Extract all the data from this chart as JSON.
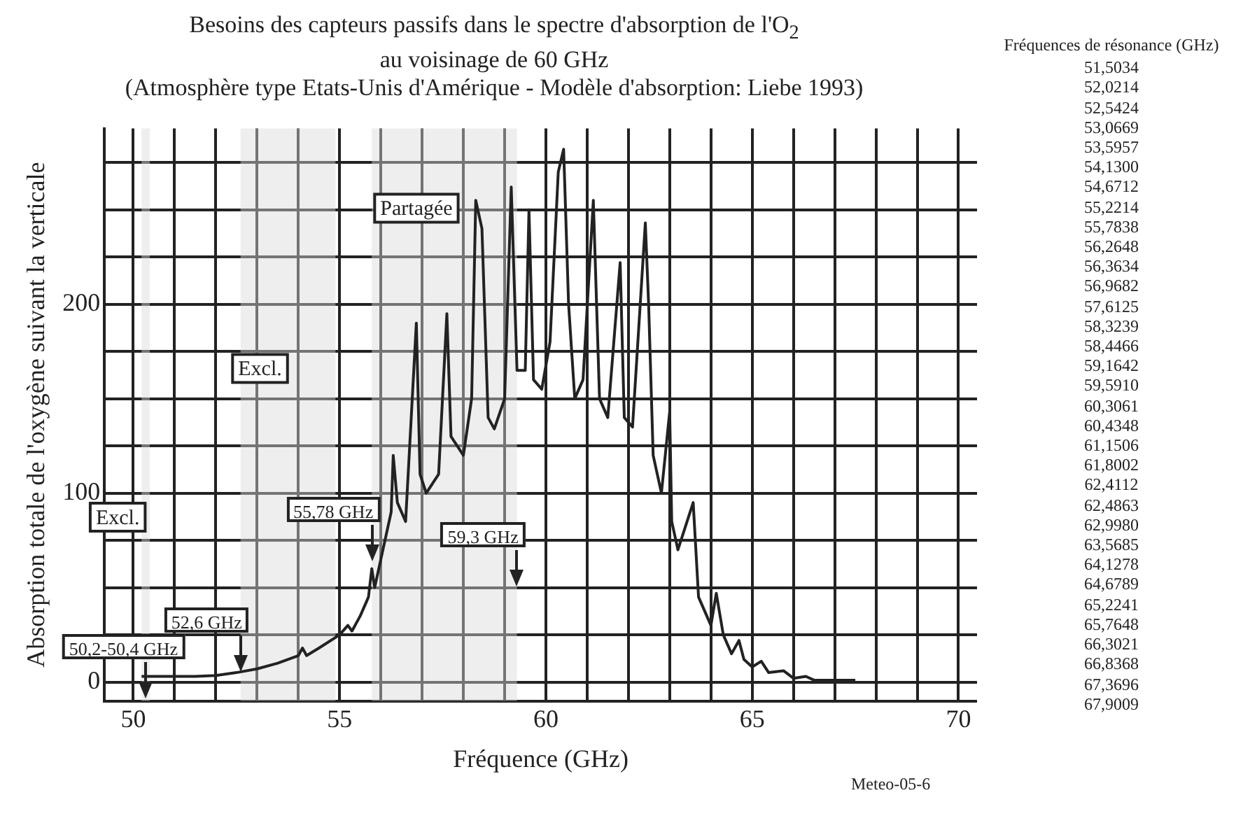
{
  "chart_data": {
    "type": "line",
    "title": "Besoins des capteurs passifs dans le spectre d'absorption de l'O$_{2}$\nau voisinage de  60 GHz",
    "subtitle": "(Atmosphère type Etats-Unis d'Amérique - Modèle d'absorption: Liebe 1993)",
    "xlabel": "Fréquence (GHz)",
    "ylabel": "Absorption totale de l'oxygène suivant la verticale",
    "x": [
      50.2,
      50.5,
      51,
      51.5,
      52,
      52.5,
      53,
      53.5,
      54,
      54.1,
      54.2,
      54.5,
      55,
      55.2,
      55.3,
      55.5,
      55.7,
      55.78,
      55.85,
      56,
      56.25,
      56.3,
      56.4,
      56.6,
      56.86,
      56.95,
      57.1,
      57.4,
      57.6,
      57.7,
      58,
      58.2,
      58.3,
      58.45,
      58.6,
      58.75,
      59,
      59.16,
      59.3,
      59.5,
      59.59,
      59.7,
      59.9,
      60.1,
      60.3,
      60.43,
      60.55,
      60.7,
      60.9,
      61.15,
      61.3,
      61.5,
      61.8,
      61.9,
      62.1,
      62.41,
      62.49,
      62.6,
      62.8,
      63,
      63.05,
      63.2,
      63.57,
      63.7,
      64,
      64.13,
      64.3,
      64.5,
      64.68,
      64.8,
      65,
      65.22,
      65.4,
      65.76,
      66,
      66.3,
      66.5,
      67,
      67.5
    ],
    "series": [
      {
        "color": "#222222",
        "values": [
          3,
          3,
          3,
          3,
          3.5,
          5,
          7,
          10,
          14,
          18,
          14,
          18,
          25,
          30,
          27,
          35,
          45,
          60,
          50,
          65,
          90,
          120,
          95,
          85,
          190,
          110,
          100,
          110,
          195,
          130,
          120,
          150,
          255,
          240,
          140,
          134,
          150,
          262,
          165,
          165,
          250,
          160,
          155,
          180,
          270,
          282,
          200,
          150,
          160,
          255,
          150,
          140,
          222,
          140,
          135,
          243,
          200,
          120,
          100,
          143,
          85,
          70,
          95,
          45,
          30,
          47,
          25,
          15,
          22,
          12,
          8,
          11,
          5,
          6,
          2,
          3,
          1,
          1,
          1
        ]
      }
    ],
    "xlim": [
      49.3,
      70.45
    ],
    "ylim": [
      -10,
      293
    ],
    "xticks": [
      50,
      {
        "value": 51,
        "label": null
      },
      {
        "value": 52,
        "label": null
      },
      {
        "value": 53,
        "label": null
      },
      {
        "value": 54,
        "label": null
      },
      55,
      {
        "value": 56,
        "label": null
      },
      {
        "value": 57,
        "label": null
      },
      {
        "value": 58,
        "label": null
      },
      {
        "value": 59,
        "label": null
      },
      60,
      {
        "value": 61,
        "label": null
      },
      {
        "value": 62,
        "label": null
      },
      {
        "value": 63,
        "label": null
      },
      {
        "value": 64,
        "label": null
      },
      65,
      {
        "value": 66,
        "label": null
      },
      {
        "value": 67,
        "label": null
      },
      {
        "value": 68,
        "label": null
      },
      {
        "value": 69,
        "label": null
      },
      70
    ],
    "yticks": [
      0,
      {
        "value": 25,
        "label": null
      },
      {
        "value": 50,
        "label": null
      },
      {
        "value": 75,
        "label": null
      },
      100,
      {
        "value": 125,
        "label": null
      },
      {
        "value": 150,
        "label": null
      },
      {
        "value": 175,
        "label": null
      },
      200,
      {
        "value": 225,
        "label": null
      },
      {
        "value": 250,
        "label": null
      },
      {
        "value": 275,
        "label": null
      }
    ],
    "grid": true,
    "legend": false,
    "marker": "none",
    "line_style": "solid",
    "bands": [
      {
        "axis": "x",
        "from": 55.78,
        "to": 59.3,
        "label": "Partagée",
        "color": "#d9d9d9"
      },
      {
        "axis": "x",
        "from": 52.6,
        "to": 54.9,
        "label": "Excl.",
        "color": "#d9d9d9"
      },
      {
        "axis": "x",
        "from": 50.2,
        "to": 50.4,
        "label": "Excl.",
        "color": "#d9d9d9"
      }
    ],
    "annotations": [
      {
        "text": "55,78 GHz",
        "x": 55.78,
        "y": 64
      },
      {
        "text": "59,3 GHz",
        "x": 59.3
      },
      {
        "text": "52,6 GHz",
        "x": 52.6,
        "y": 5.4
      },
      {
        "text": "50,2-50,4 GHz",
        "x": 50.3,
        "y": -9
      },
      "Fréquences de résonance (GHz)",
      "51,5034",
      "52,0214",
      "52,5424",
      "53,0669",
      "53,5957",
      "54,1300",
      "54,6712",
      "55,2214",
      "55,7838",
      "56,2648",
      "56,3634",
      "56,9682",
      "57,6125",
      "58,3239",
      "58,4466",
      "59,1642",
      "59,5910",
      "60,3061",
      "60,4348",
      "61,1506",
      "61,8002",
      "62,4112",
      "62,4863",
      "62,9980",
      "63,5685",
      "64,1278",
      "64,6789",
      "65,2241",
      "65,7648",
      "66,3021",
      "66,8368",
      "67,3696",
      "67,9009",
      "Meteo-05-6"
    ]
  }
}
